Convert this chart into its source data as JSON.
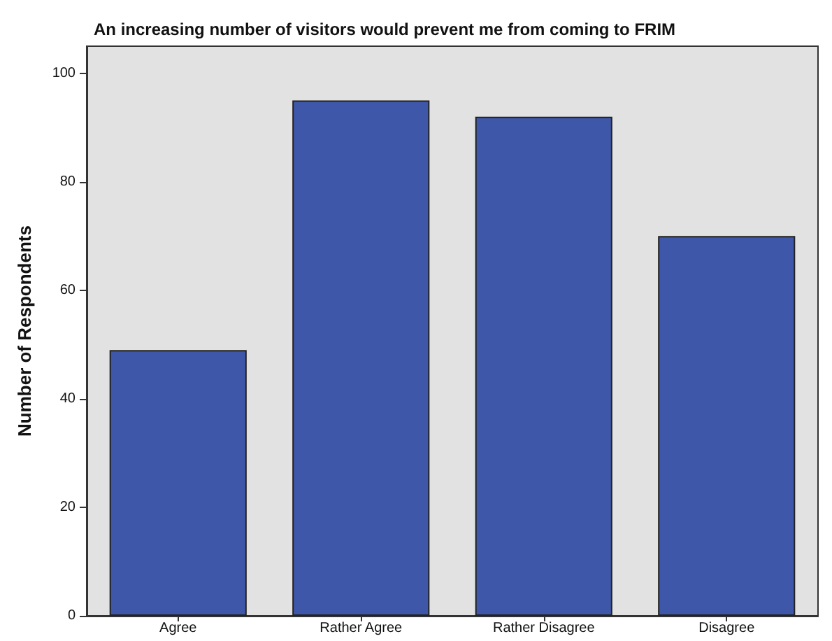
{
  "chart_data": {
    "type": "bar",
    "title": "An increasing number of visitors would prevent me from coming to FRIM",
    "ylabel": "Number of Respondents",
    "categories": [
      "Agree",
      "Rather Agree",
      "Rather Disagree",
      "Disagree"
    ],
    "values": [
      49,
      95,
      92,
      70
    ],
    "color": "#3e57a8",
    "ylim": [
      0,
      105
    ],
    "yticks": [
      0,
      20,
      40,
      60,
      80,
      100
    ],
    "grid": false
  }
}
